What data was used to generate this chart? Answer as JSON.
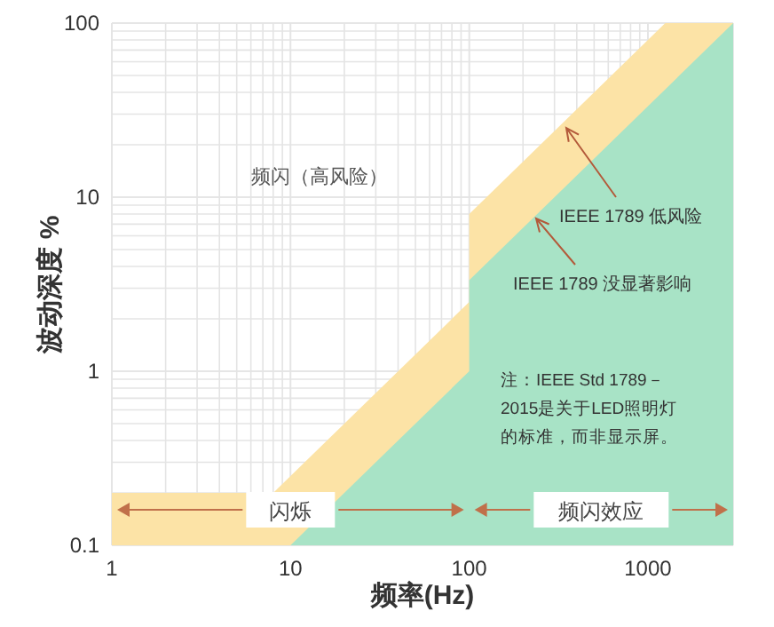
{
  "chart_data": {
    "type": "area",
    "xlabel": "频率(Hz)",
    "ylabel": "波动深度 %",
    "log": "xy",
    "xlim": [
      1,
      3000
    ],
    "ylim": [
      0.1,
      100
    ],
    "xticks": [
      1,
      10,
      100,
      1000
    ],
    "yticks": [
      0.1,
      1,
      10,
      100
    ],
    "grid": true,
    "series": [
      {
        "color": "#fce3a6",
        "x": [
          1,
          8,
          100,
          100,
          1250,
          3000
        ],
        "values": [
          0.2,
          0.2,
          2.5,
          8,
          100,
          100
        ]
      },
      {
        "color": "#a8e3c6",
        "x": [
          10,
          100,
          100,
          3000
        ],
        "values": [
          0.1,
          1,
          3.33,
          100
        ]
      }
    ],
    "annotations": [
      "频闪（高风险）",
      "IEEE 1789 低风险",
      "IEEE 1789 没显著影响",
      "注：IEEE Std 1789－2015是关于LED照明灯的标准，而非显示屏。",
      "闪烁",
      "频闪效应"
    ]
  }
}
